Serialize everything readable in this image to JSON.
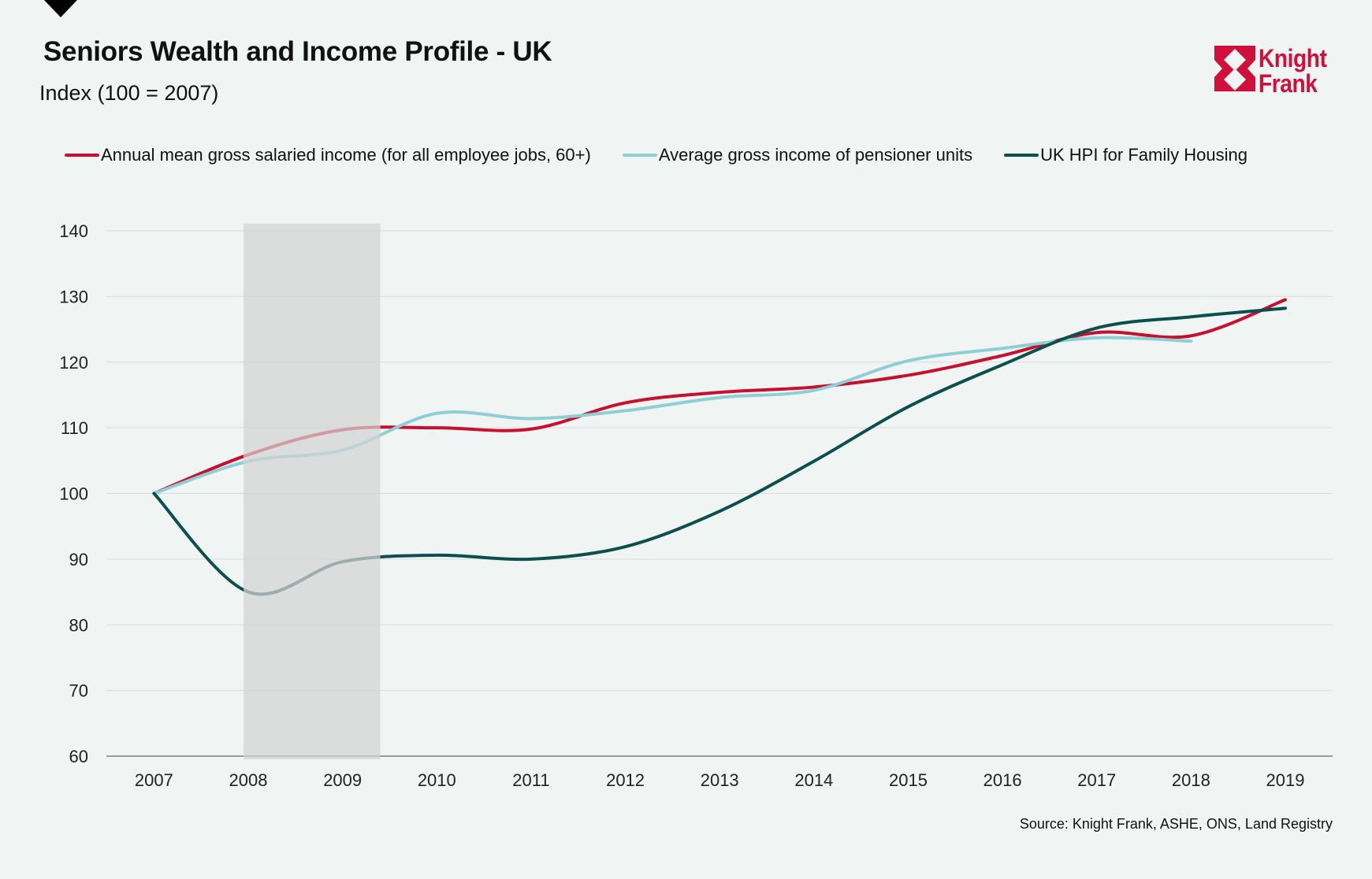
{
  "header": {
    "title": "Seniors Wealth and Income Profile - UK",
    "subtitle": "Index (100 = 2007)"
  },
  "logo": {
    "text_line1": "Knight",
    "text_line2": "Frank",
    "color": "#d0103a"
  },
  "source": "Source: Knight Frank, ASHE, ONS, Land Registry",
  "chart_data": {
    "type": "line",
    "title": "Seniors Wealth and Income Profile - UK",
    "ylabel": "Index (100 = 2007)",
    "x": [
      "2007",
      "2008",
      "2009",
      "2010",
      "2011",
      "2012",
      "2013",
      "2014",
      "2015",
      "2016",
      "2017",
      "2018",
      "2019"
    ],
    "ylim": [
      60,
      140
    ],
    "yticks": [
      60,
      70,
      80,
      90,
      100,
      110,
      120,
      130,
      140
    ],
    "grid": true,
    "legend": "top",
    "shaded_period": [
      2007.95,
      2009.4
    ],
    "series": [
      {
        "name": "Annual mean gross salaried income (for all employee jobs, 60+)",
        "color": "#c8102e",
        "values": [
          100,
          105.9,
          109.7,
          110,
          109.8,
          113.8,
          115.4,
          116.2,
          118,
          121,
          124.5,
          124,
          129.5
        ]
      },
      {
        "name": "Average gross income of pensioner units",
        "color": "#8ecfd6",
        "values": [
          100,
          104.9,
          106.6,
          112.2,
          111.4,
          112.6,
          114.6,
          115.7,
          120.2,
          122.1,
          123.7,
          123.2,
          null
        ]
      },
      {
        "name": "UK HPI for Family Housing",
        "color": "#0b4f4f",
        "values": [
          100,
          85,
          89.6,
          90.6,
          90,
          91.9,
          97.3,
          104.9,
          113.2,
          119.6,
          125.2,
          126.9,
          128.2
        ]
      }
    ]
  }
}
